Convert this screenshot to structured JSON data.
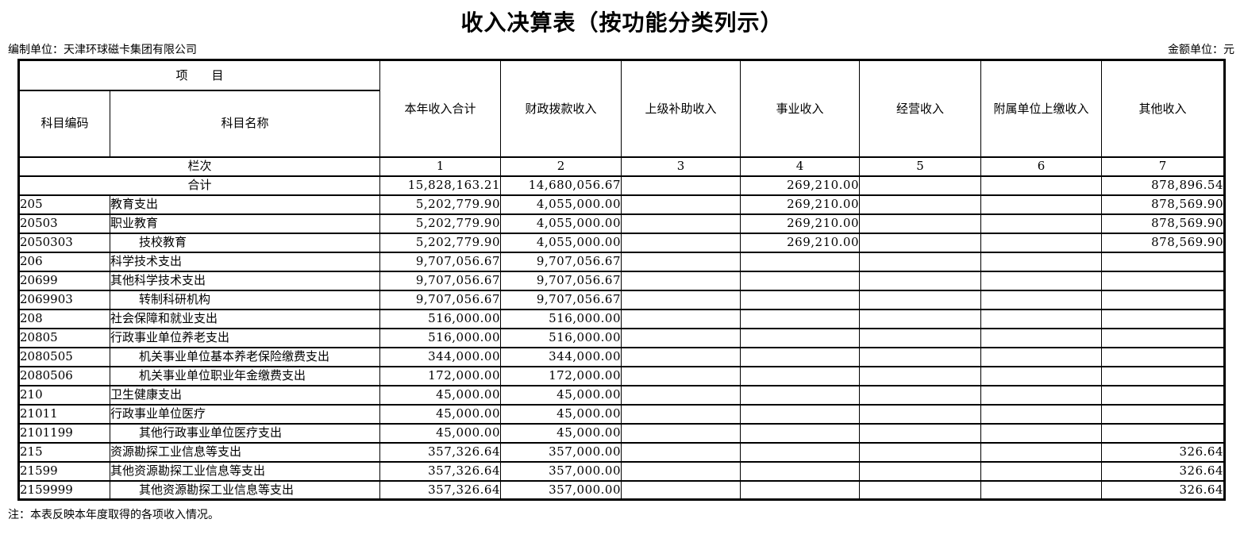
{
  "page": {
    "title": "收入决算表（按功能分类列示）",
    "prepared_by": "编制单位：天津环球磁卡集团有限公司",
    "unit_note": "金额单位：元",
    "footer_note": "注：本表反映本年度取得的各项收入情况。"
  },
  "table": {
    "header": {
      "item_group": "项　　目",
      "code": "科目编码",
      "name": "科目名称",
      "value_columns": [
        "本年收入合计",
        "财政拨款收入",
        "上级补助收入",
        "事业收入",
        "经营收入",
        "附属单位上缴收入",
        "其他收入"
      ],
      "lane_label": "栏次",
      "lane_numbers": [
        "1",
        "2",
        "3",
        "4",
        "5",
        "6",
        "7"
      ]
    },
    "total": {
      "label": "合计",
      "values": [
        "15,828,163.21",
        "14,680,056.67",
        "",
        "269,210.00",
        "",
        "",
        "878,896.54"
      ]
    },
    "rows": [
      {
        "code": "205",
        "name": "教育支出",
        "indent": false,
        "values": [
          "5,202,779.90",
          "4,055,000.00",
          "",
          "269,210.00",
          "",
          "",
          "878,569.90"
        ]
      },
      {
        "code": "20503",
        "name": "职业教育",
        "indent": false,
        "values": [
          "5,202,779.90",
          "4,055,000.00",
          "",
          "269,210.00",
          "",
          "",
          "878,569.90"
        ]
      },
      {
        "code": "2050303",
        "name": "技校教育",
        "indent": true,
        "values": [
          "5,202,779.90",
          "4,055,000.00",
          "",
          "269,210.00",
          "",
          "",
          "878,569.90"
        ]
      },
      {
        "code": "206",
        "name": "科学技术支出",
        "indent": false,
        "values": [
          "9,707,056.67",
          "9,707,056.67",
          "",
          "",
          "",
          "",
          ""
        ]
      },
      {
        "code": "20699",
        "name": "其他科学技术支出",
        "indent": false,
        "values": [
          "9,707,056.67",
          "9,707,056.67",
          "",
          "",
          "",
          "",
          ""
        ]
      },
      {
        "code": "2069903",
        "name": "转制科研机构",
        "indent": true,
        "values": [
          "9,707,056.67",
          "9,707,056.67",
          "",
          "",
          "",
          "",
          ""
        ]
      },
      {
        "code": "208",
        "name": "社会保障和就业支出",
        "indent": false,
        "values": [
          "516,000.00",
          "516,000.00",
          "",
          "",
          "",
          "",
          ""
        ]
      },
      {
        "code": "20805",
        "name": "行政事业单位养老支出",
        "indent": false,
        "values": [
          "516,000.00",
          "516,000.00",
          "",
          "",
          "",
          "",
          ""
        ]
      },
      {
        "code": "2080505",
        "name": "机关事业单位基本养老保险缴费支出",
        "indent": true,
        "values": [
          "344,000.00",
          "344,000.00",
          "",
          "",
          "",
          "",
          ""
        ]
      },
      {
        "code": "2080506",
        "name": "机关事业单位职业年金缴费支出",
        "indent": true,
        "values": [
          "172,000.00",
          "172,000.00",
          "",
          "",
          "",
          "",
          ""
        ]
      },
      {
        "code": "210",
        "name": "卫生健康支出",
        "indent": false,
        "values": [
          "45,000.00",
          "45,000.00",
          "",
          "",
          "",
          "",
          ""
        ]
      },
      {
        "code": "21011",
        "name": "行政事业单位医疗",
        "indent": false,
        "values": [
          "45,000.00",
          "45,000.00",
          "",
          "",
          "",
          "",
          ""
        ]
      },
      {
        "code": "2101199",
        "name": "其他行政事业单位医疗支出",
        "indent": true,
        "values": [
          "45,000.00",
          "45,000.00",
          "",
          "",
          "",
          "",
          ""
        ]
      },
      {
        "code": "215",
        "name": "资源勘探工业信息等支出",
        "indent": false,
        "values": [
          "357,326.64",
          "357,000.00",
          "",
          "",
          "",
          "",
          "326.64"
        ]
      },
      {
        "code": "21599",
        "name": "其他资源勘探工业信息等支出",
        "indent": false,
        "values": [
          "357,326.64",
          "357,000.00",
          "",
          "",
          "",
          "",
          "326.64"
        ]
      },
      {
        "code": "2159999",
        "name": "其他资源勘探工业信息等支出",
        "indent": true,
        "values": [
          "357,326.64",
          "357,000.00",
          "",
          "",
          "",
          "",
          "326.64"
        ]
      }
    ]
  }
}
